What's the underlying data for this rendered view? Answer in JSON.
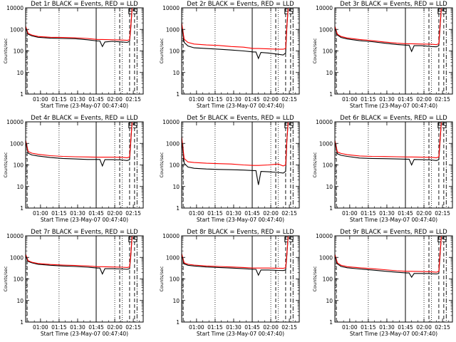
{
  "legend_text": "BLACK = Events, RED = LLD",
  "colors": {
    "events": "#000000",
    "lld": "#ff0000"
  },
  "ylabel": "Counts/sec",
  "xlabel": "Start Time (23-May-07 00:47:40)",
  "yticks": [
    "1",
    "10",
    "100",
    "1000",
    "10000"
  ],
  "xticks": [
    "01:00",
    "01:15",
    "01:30",
    "01:45",
    "02:00",
    "02:15"
  ],
  "markers": [
    "E",
    "S"
  ],
  "chart_data": [
    {
      "type": "line",
      "title": "Det 1r BLACK = Events, RED = LLD",
      "xlabel": "Start Time (23-May-07 00:47:40)",
      "ylabel": "Counts/sec",
      "x_unit": "minutes after 00:47:40",
      "log_y": true,
      "ylim": [
        1,
        10000
      ],
      "xlim": [
        0,
        95
      ],
      "series": [
        {
          "name": "Events",
          "color": "#000000",
          "x": [
            0,
            2,
            5,
            10,
            20,
            30,
            40,
            50,
            58,
            60,
            62,
            64,
            70,
            78,
            82,
            84,
            85,
            86
          ],
          "y": [
            1200,
            600,
            500,
            430,
            390,
            380,
            370,
            330,
            290,
            290,
            160,
            260,
            280,
            260,
            250,
            280,
            1200,
            9000
          ]
        },
        {
          "name": "LLD",
          "color": "#ff0000",
          "x": [
            0,
            2,
            5,
            10,
            20,
            30,
            40,
            50,
            58,
            62,
            70,
            78,
            82,
            84,
            85,
            86
          ],
          "y": [
            1400,
            650,
            550,
            470,
            430,
            420,
            410,
            380,
            340,
            340,
            330,
            320,
            310,
            330,
            1400,
            9500
          ]
        }
      ]
    },
    {
      "type": "line",
      "title": "Det 2r BLACK = Events, RED = LLD",
      "xlabel": "Start Time (23-May-07 00:47:40)",
      "ylabel": "Counts/sec",
      "x_unit": "minutes after 00:47:40",
      "log_y": true,
      "ylim": [
        1,
        10000
      ],
      "xlim": [
        0,
        95
      ],
      "series": [
        {
          "name": "Events",
          "color": "#000000",
          "x": [
            0,
            2,
            5,
            10,
            20,
            30,
            40,
            50,
            58,
            60,
            62,
            64,
            70,
            78,
            82,
            84,
            85,
            86
          ],
          "y": [
            1500,
            250,
            170,
            140,
            130,
            120,
            110,
            100,
            90,
            90,
            45,
            85,
            80,
            70,
            65,
            80,
            1200,
            9000
          ]
        },
        {
          "name": "LLD",
          "color": "#ff0000",
          "x": [
            0,
            2,
            5,
            10,
            20,
            30,
            40,
            50,
            58,
            62,
            70,
            78,
            82,
            84,
            85,
            86
          ],
          "y": [
            2000,
            350,
            250,
            210,
            190,
            180,
            160,
            150,
            130,
            130,
            125,
            120,
            120,
            130,
            1400,
            9500
          ]
        }
      ]
    },
    {
      "type": "line",
      "title": "Det 3r BLACK = Events, RED = LLD",
      "xlabel": "Start Time (23-May-07 00:47:40)",
      "ylabel": "Counts/sec",
      "x_unit": "minutes after 00:47:40",
      "log_y": true,
      "ylim": [
        1,
        10000
      ],
      "xlim": [
        0,
        95
      ],
      "series": [
        {
          "name": "Events",
          "color": "#000000",
          "x": [
            0,
            2,
            5,
            10,
            20,
            30,
            40,
            50,
            58,
            60,
            62,
            64,
            70,
            78,
            82,
            84,
            85,
            86
          ],
          "y": [
            1200,
            550,
            420,
            360,
            300,
            270,
            230,
            200,
            185,
            185,
            95,
            175,
            175,
            160,
            155,
            175,
            1200,
            9000
          ]
        },
        {
          "name": "LLD",
          "color": "#ff0000",
          "x": [
            0,
            2,
            5,
            10,
            20,
            30,
            40,
            50,
            58,
            62,
            70,
            78,
            82,
            84,
            85,
            86
          ],
          "y": [
            1400,
            600,
            470,
            400,
            340,
            300,
            260,
            230,
            215,
            215,
            210,
            205,
            195,
            215,
            1400,
            9500
          ]
        }
      ]
    },
    {
      "type": "line",
      "title": "Det 4r BLACK = Events, RED = LLD",
      "xlabel": "Start Time (23-May-07 00:47:40)",
      "ylabel": "Counts/sec",
      "x_unit": "minutes after 00:47:40",
      "log_y": true,
      "ylim": [
        1,
        10000
      ],
      "xlim": [
        0,
        95
      ],
      "series": [
        {
          "name": "Events",
          "color": "#000000",
          "x": [
            0,
            2,
            5,
            10,
            20,
            30,
            40,
            50,
            58,
            60,
            62,
            64,
            70,
            78,
            82,
            84,
            85,
            86
          ],
          "y": [
            1200,
            350,
            290,
            260,
            220,
            200,
            190,
            180,
            180,
            180,
            90,
            175,
            175,
            170,
            160,
            175,
            1200,
            9000
          ]
        },
        {
          "name": "LLD",
          "color": "#ff0000",
          "x": [
            0,
            2,
            5,
            10,
            20,
            30,
            40,
            50,
            58,
            62,
            70,
            78,
            82,
            84,
            85,
            86
          ],
          "y": [
            1400,
            420,
            350,
            310,
            270,
            250,
            240,
            235,
            230,
            230,
            230,
            225,
            215,
            235,
            1400,
            9500
          ]
        }
      ]
    },
    {
      "type": "line",
      "title": "Det 5r BLACK = Events, RED = LLD",
      "xlabel": "Start Time (23-May-07 00:47:40)",
      "ylabel": "Counts/sec",
      "x_unit": "minutes after 00:47:40",
      "log_y": true,
      "ylim": [
        1,
        10000
      ],
      "xlim": [
        0,
        95
      ],
      "series": [
        {
          "name": "Events",
          "color": "#000000",
          "x": [
            0,
            2,
            5,
            10,
            20,
            30,
            40,
            50,
            58,
            60,
            62,
            64,
            70,
            78,
            82,
            84,
            85,
            86
          ],
          "y": [
            1500,
            120,
            80,
            70,
            65,
            62,
            60,
            58,
            55,
            55,
            12,
            50,
            48,
            45,
            42,
            50,
            1200,
            9000
          ]
        },
        {
          "name": "LLD",
          "color": "#ff0000",
          "x": [
            0,
            2,
            5,
            10,
            20,
            30,
            40,
            50,
            58,
            62,
            70,
            78,
            82,
            84,
            85,
            86
          ],
          "y": [
            2000,
            200,
            140,
            130,
            120,
            115,
            110,
            100,
            95,
            95,
            100,
            110,
            90,
            100,
            1400,
            9500
          ]
        }
      ]
    },
    {
      "type": "line",
      "title": "Det 6r BLACK = Events, RED = LLD",
      "xlabel": "Start Time (23-May-07 00:47:40)",
      "ylabel": "Counts/sec",
      "x_unit": "minutes after 00:47:40",
      "log_y": true,
      "ylim": [
        1,
        10000
      ],
      "xlim": [
        0,
        95
      ],
      "series": [
        {
          "name": "Events",
          "color": "#000000",
          "x": [
            0,
            2,
            5,
            10,
            20,
            30,
            40,
            50,
            58,
            60,
            62,
            64,
            70,
            78,
            82,
            84,
            85,
            86
          ],
          "y": [
            1200,
            330,
            280,
            250,
            210,
            200,
            195,
            190,
            185,
            185,
            100,
            180,
            175,
            170,
            160,
            175,
            1200,
            9000
          ]
        },
        {
          "name": "LLD",
          "color": "#ff0000",
          "x": [
            0,
            2,
            5,
            10,
            20,
            30,
            40,
            50,
            58,
            62,
            70,
            78,
            82,
            84,
            85,
            86
          ],
          "y": [
            1400,
            400,
            340,
            300,
            260,
            250,
            245,
            240,
            235,
            235,
            230,
            225,
            215,
            235,
            1400,
            9500
          ]
        }
      ]
    },
    {
      "type": "line",
      "title": "Det 7r BLACK = Events, RED = LLD",
      "xlabel": "Start Time (23-May-07 00:47:40)",
      "ylabel": "Counts/sec",
      "x_unit": "minutes after 00:47:40",
      "log_y": true,
      "ylim": [
        1,
        10000
      ],
      "xlim": [
        0,
        95
      ],
      "series": [
        {
          "name": "Events",
          "color": "#000000",
          "x": [
            0,
            2,
            5,
            10,
            20,
            30,
            40,
            50,
            58,
            60,
            62,
            64,
            70,
            78,
            82,
            84,
            85,
            86
          ],
          "y": [
            1200,
            650,
            560,
            480,
            430,
            400,
            380,
            350,
            320,
            320,
            170,
            300,
            300,
            290,
            280,
            300,
            1200,
            9000
          ]
        },
        {
          "name": "LLD",
          "color": "#ff0000",
          "x": [
            0,
            2,
            5,
            10,
            20,
            30,
            40,
            50,
            58,
            62,
            70,
            78,
            82,
            84,
            85,
            86
          ],
          "y": [
            1400,
            700,
            600,
            520,
            470,
            440,
            420,
            400,
            370,
            370,
            360,
            350,
            340,
            360,
            1400,
            9500
          ]
        }
      ]
    },
    {
      "type": "line",
      "title": "Det 8r BLACK = Events, RED = LLD",
      "xlabel": "Start Time (23-May-07 00:47:40)",
      "ylabel": "Counts/sec",
      "x_unit": "minutes after 00:47:40",
      "log_y": true,
      "ylim": [
        1,
        10000
      ],
      "xlim": [
        0,
        95
      ],
      "series": [
        {
          "name": "Events",
          "color": "#000000",
          "x": [
            0,
            2,
            5,
            10,
            20,
            30,
            40,
            50,
            58,
            60,
            62,
            64,
            70,
            78,
            82,
            84,
            85,
            86
          ],
          "y": [
            1300,
            500,
            430,
            400,
            360,
            340,
            320,
            300,
            280,
            280,
            150,
            260,
            260,
            250,
            245,
            260,
            1200,
            9000
          ]
        },
        {
          "name": "LLD",
          "color": "#ff0000",
          "x": [
            0,
            2,
            5,
            10,
            20,
            30,
            40,
            50,
            58,
            62,
            70,
            78,
            82,
            84,
            85,
            86
          ],
          "y": [
            1500,
            560,
            480,
            440,
            400,
            380,
            360,
            340,
            320,
            320,
            320,
            315,
            310,
            330,
            1400,
            9500
          ]
        }
      ]
    },
    {
      "type": "line",
      "title": "Det 9r BLACK = Events, RED = LLD",
      "xlabel": "Start Time (23-May-07 00:47:40)",
      "ylabel": "Counts/sec",
      "x_unit": "minutes after 00:47:40",
      "log_y": true,
      "ylim": [
        1,
        10000
      ],
      "xlim": [
        0,
        95
      ],
      "series": [
        {
          "name": "Events",
          "color": "#000000",
          "x": [
            0,
            2,
            5,
            10,
            20,
            30,
            40,
            50,
            58,
            60,
            62,
            64,
            70,
            78,
            82,
            84,
            85,
            86
          ],
          "y": [
            1200,
            500,
            380,
            330,
            290,
            260,
            230,
            205,
            190,
            190,
            120,
            180,
            180,
            175,
            170,
            180,
            1200,
            9000
          ]
        },
        {
          "name": "LLD",
          "color": "#ff0000",
          "x": [
            0,
            2,
            5,
            10,
            20,
            30,
            40,
            50,
            58,
            62,
            70,
            78,
            82,
            84,
            85,
            86
          ],
          "y": [
            1400,
            560,
            430,
            370,
            330,
            300,
            270,
            240,
            225,
            225,
            220,
            215,
            205,
            225,
            1400,
            9500
          ]
        }
      ]
    }
  ]
}
